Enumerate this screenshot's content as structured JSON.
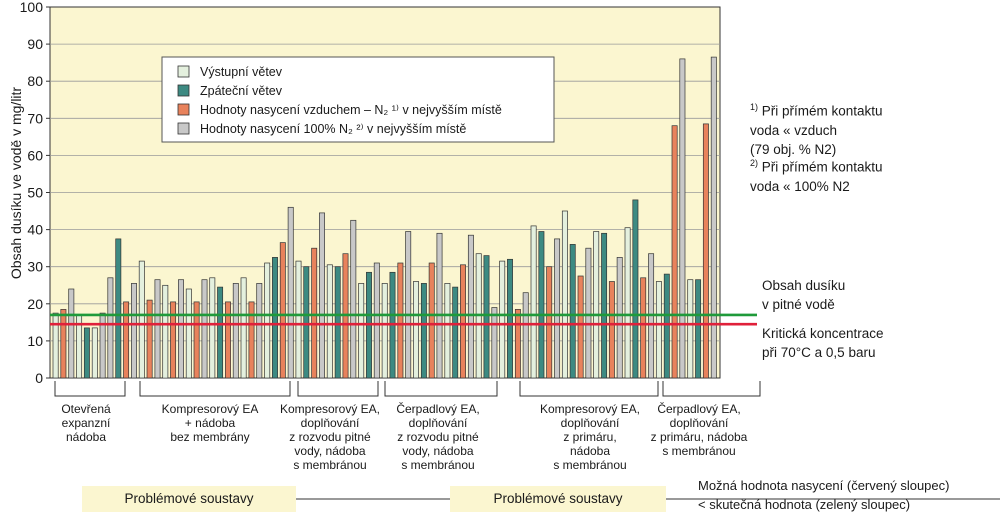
{
  "chart_data": {
    "type": "bar",
    "ylabel": "Obsah dusíku ve vodě v mg/litr",
    "ylim": [
      0,
      100
    ],
    "yticks": [
      0,
      10,
      20,
      30,
      40,
      50,
      60,
      70,
      80,
      90,
      100
    ],
    "grid": true,
    "legend_position": "top-left",
    "series": [
      {
        "name": "Výstupní větev",
        "color": "#e4f0de"
      },
      {
        "name": "Zpáteční větev",
        "color": "#3d8a82"
      },
      {
        "name": "Hodnoty nasycení vzduchem – N₂ ¹⁾ v nejvyšším místě",
        "color": "#e8825c"
      },
      {
        "name": "Hodnoty nasycení  100% N₂ ²⁾ v nejvyšším místě",
        "color": "#c8c8c8"
      }
    ],
    "bars": [
      {
        "s": 0,
        "v": 17.5
      },
      {
        "s": 2,
        "v": 18.5
      },
      {
        "s": 3,
        "v": 24
      },
      {
        "s": 0,
        "v": 17
      },
      {
        "s": 1,
        "v": 13.5
      },
      {
        "s": 0,
        "v": 13.5
      },
      {
        "s": 3,
        "v": 17.5
      },
      {
        "s": 3,
        "v": 27
      },
      {
        "s": 1,
        "v": 37.5
      },
      {
        "s": 2,
        "v": 20.5
      },
      {
        "s": 3,
        "v": 25.5
      },
      {
        "s": 0,
        "v": 31.5
      },
      {
        "s": 2,
        "v": 21
      },
      {
        "s": 3,
        "v": 26.5
      },
      {
        "s": 0,
        "v": 25
      },
      {
        "s": 2,
        "v": 20.5
      },
      {
        "s": 3,
        "v": 26.5
      },
      {
        "s": 0,
        "v": 24
      },
      {
        "s": 2,
        "v": 20.5
      },
      {
        "s": 3,
        "v": 26.5
      },
      {
        "s": 0,
        "v": 27
      },
      {
        "s": 1,
        "v": 24.5
      },
      {
        "s": 2,
        "v": 20.5
      },
      {
        "s": 3,
        "v": 25.5
      },
      {
        "s": 0,
        "v": 27
      },
      {
        "s": 2,
        "v": 20.5
      },
      {
        "s": 3,
        "v": 25.5
      },
      {
        "s": 0,
        "v": 31
      },
      {
        "s": 1,
        "v": 32.5
      },
      {
        "s": 2,
        "v": 36.5
      },
      {
        "s": 3,
        "v": 46
      },
      {
        "s": 0,
        "v": 31.5
      },
      {
        "s": 1,
        "v": 30
      },
      {
        "s": 2,
        "v": 35
      },
      {
        "s": 3,
        "v": 44.5
      },
      {
        "s": 0,
        "v": 30.5
      },
      {
        "s": 1,
        "v": 30
      },
      {
        "s": 2,
        "v": 33.5
      },
      {
        "s": 3,
        "v": 42.5
      },
      {
        "s": 0,
        "v": 25.5
      },
      {
        "s": 1,
        "v": 28.5
      },
      {
        "s": 3,
        "v": 31
      },
      {
        "s": 0,
        "v": 25.5
      },
      {
        "s": 1,
        "v": 28.5
      },
      {
        "s": 2,
        "v": 31
      },
      {
        "s": 3,
        "v": 39.5
      },
      {
        "s": 0,
        "v": 26
      },
      {
        "s": 1,
        "v": 25.5
      },
      {
        "s": 2,
        "v": 31
      },
      {
        "s": 3,
        "v": 39
      },
      {
        "s": 0,
        "v": 25.5
      },
      {
        "s": 1,
        "v": 24.5
      },
      {
        "s": 2,
        "v": 30.5
      },
      {
        "s": 3,
        "v": 38.5
      },
      {
        "s": 0,
        "v": 33.5
      },
      {
        "s": 1,
        "v": 33
      },
      {
        "s": 3,
        "v": 19
      },
      {
        "s": 0,
        "v": 31.5
      },
      {
        "s": 1,
        "v": 32
      },
      {
        "s": 2,
        "v": 18.5
      },
      {
        "s": 3,
        "v": 23
      },
      {
        "s": 0,
        "v": 41
      },
      {
        "s": 1,
        "v": 39.5
      },
      {
        "s": 2,
        "v": 30
      },
      {
        "s": 3,
        "v": 37.5
      },
      {
        "s": 0,
        "v": 45
      },
      {
        "s": 1,
        "v": 36
      },
      {
        "s": 2,
        "v": 27.5
      },
      {
        "s": 3,
        "v": 35
      },
      {
        "s": 0,
        "v": 39.5
      },
      {
        "s": 1,
        "v": 39
      },
      {
        "s": 2,
        "v": 26
      },
      {
        "s": 3,
        "v": 32.5
      },
      {
        "s": 0,
        "v": 40.5
      },
      {
        "s": 1,
        "v": 48
      },
      {
        "s": 2,
        "v": 27
      },
      {
        "s": 3,
        "v": 33.5
      },
      {
        "s": 0,
        "v": 26
      },
      {
        "s": 1,
        "v": 28
      },
      {
        "s": 2,
        "v": 68
      },
      {
        "s": 3,
        "v": 86
      },
      {
        "s": 0,
        "v": 26.5
      },
      {
        "s": 1,
        "v": 26.5
      },
      {
        "s": 2,
        "v": 68.5
      },
      {
        "s": 3,
        "v": 86.5
      }
    ],
    "reference_lines": [
      {
        "value": 17,
        "color": "#1f9a3a",
        "label": "Obsah dusíku\nv pitné vodě"
      },
      {
        "value": 14.5,
        "color": "#e0203a",
        "label": "Kritická koncentrace\npři 70°C a 0,5 baru"
      }
    ],
    "groups": [
      {
        "label": "Otevřená\nexpanzní\nnádoba"
      },
      {
        "label": "Kompresorový EA\n+ nádoba\nbez membrány"
      },
      {
        "label": "Kompresorový EA,\ndoplňování\nz rozvodu pitné\nvody, nádoba\ns  membránou"
      },
      {
        "label": "Čerpadlový EA,\ndoplňování\nz rozvodu pitné\nvody, nádoba\ns membránou"
      },
      {
        "label": "Kompresorový EA,\ndoplňování\nz primáru,\nnádoba\ns membránou"
      },
      {
        "label": "Čerpadlový EA,\ndoplňování\nz primáru, nádoba\ns membránou"
      }
    ]
  },
  "notes": {
    "n1_mark": "1)",
    "n1_text": "Při přímém kontaktu\nvoda « vzduch\n(79 obj. % N2)",
    "n2_mark": "2)",
    "n2_text": "Při přímém kontaktu\nvoda « 100% N2"
  },
  "bottom": {
    "band1": "Problémové soustavy",
    "band2": "Problémové soustavy",
    "line1": "Možná hodnota nasycení (červený sloupec)",
    "line2": "< skutečná hodnota (zelený sloupec)"
  }
}
